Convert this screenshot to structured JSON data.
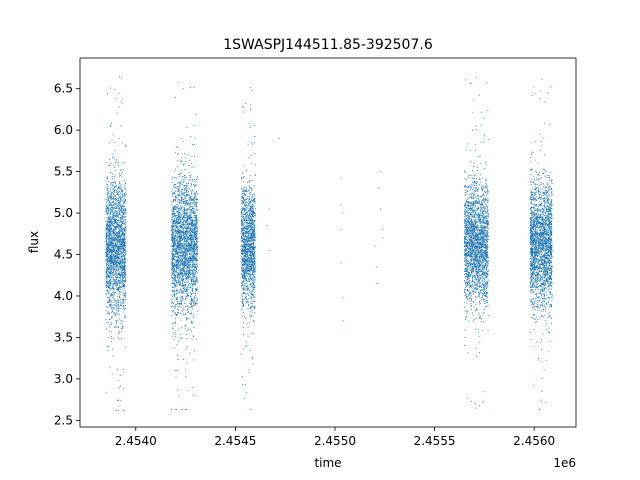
{
  "chart_data": {
    "type": "scatter",
    "title": "1SWASPJ144511.85-392507.6",
    "xlabel": "time",
    "ylabel": "flux",
    "x_offset_label": "1e6",
    "xlim": [
      2.45372,
      2.45621
    ],
    "ylim": [
      2.42,
      6.87
    ],
    "x_ticks": [
      2.454,
      2.4545,
      2.455,
      2.4555,
      2.456
    ],
    "x_tick_labels": [
      "2.4540",
      "2.4545",
      "2.4550",
      "2.4555",
      "2.4560"
    ],
    "y_ticks": [
      2.5,
      3.0,
      3.5,
      4.0,
      4.5,
      5.0,
      5.5,
      6.0,
      6.5
    ],
    "y_tick_labels": [
      "2.5",
      "3.0",
      "3.5",
      "4.0",
      "4.5",
      "5.0",
      "5.5",
      "6.0",
      "6.5"
    ],
    "grid": false,
    "legend": "none",
    "point_color": "#1f77b4",
    "series": [
      {
        "clusters": [
          {
            "x_range": [
              2.45385,
              2.45395
            ],
            "y_center": 4.6,
            "y_spread": 0.42,
            "y_min": 2.62,
            "y_max": 6.68,
            "count": 2200
          },
          {
            "x_range": [
              2.45418,
              2.45431
            ],
            "y_center": 4.6,
            "y_spread": 0.4,
            "y_min": 2.63,
            "y_max": 6.65,
            "count": 2600
          },
          {
            "x_range": [
              2.45453,
              2.4546
            ],
            "y_center": 4.6,
            "y_spread": 0.38,
            "y_min": 2.63,
            "y_max": 6.62,
            "count": 1500
          },
          {
            "x_range": [
              2.45565,
              2.45577
            ],
            "y_center": 4.62,
            "y_spread": 0.36,
            "y_min": 2.62,
            "y_max": 6.65,
            "count": 2300
          },
          {
            "x_range": [
              2.45598,
              2.45609
            ],
            "y_center": 4.62,
            "y_spread": 0.38,
            "y_min": 2.62,
            "y_max": 6.65,
            "count": 2300
          }
        ],
        "sparse_points": [
          {
            "x": 2.45466,
            "y": 4.85
          },
          {
            "x": 2.45467,
            "y": 5.05
          },
          {
            "x": 2.45467,
            "y": 4.55
          },
          {
            "x": 2.45472,
            "y": 5.9
          },
          {
            "x": 2.45503,
            "y": 5.42
          },
          {
            "x": 2.45503,
            "y": 5.1
          },
          {
            "x": 2.45503,
            "y": 4.8
          },
          {
            "x": 2.45503,
            "y": 4.4
          },
          {
            "x": 2.45504,
            "y": 3.98
          },
          {
            "x": 2.45504,
            "y": 3.7
          },
          {
            "x": 2.45504,
            "y": 5.0
          },
          {
            "x": 2.4552,
            "y": 4.6
          },
          {
            "x": 2.45521,
            "y": 4.35
          },
          {
            "x": 2.45521,
            "y": 4.15
          },
          {
            "x": 2.45522,
            "y": 5.3
          },
          {
            "x": 2.45523,
            "y": 5.5
          },
          {
            "x": 2.45523,
            "y": 5.05
          },
          {
            "x": 2.45524,
            "y": 4.7
          },
          {
            "x": 2.45524,
            "y": 4.8
          }
        ]
      }
    ]
  }
}
